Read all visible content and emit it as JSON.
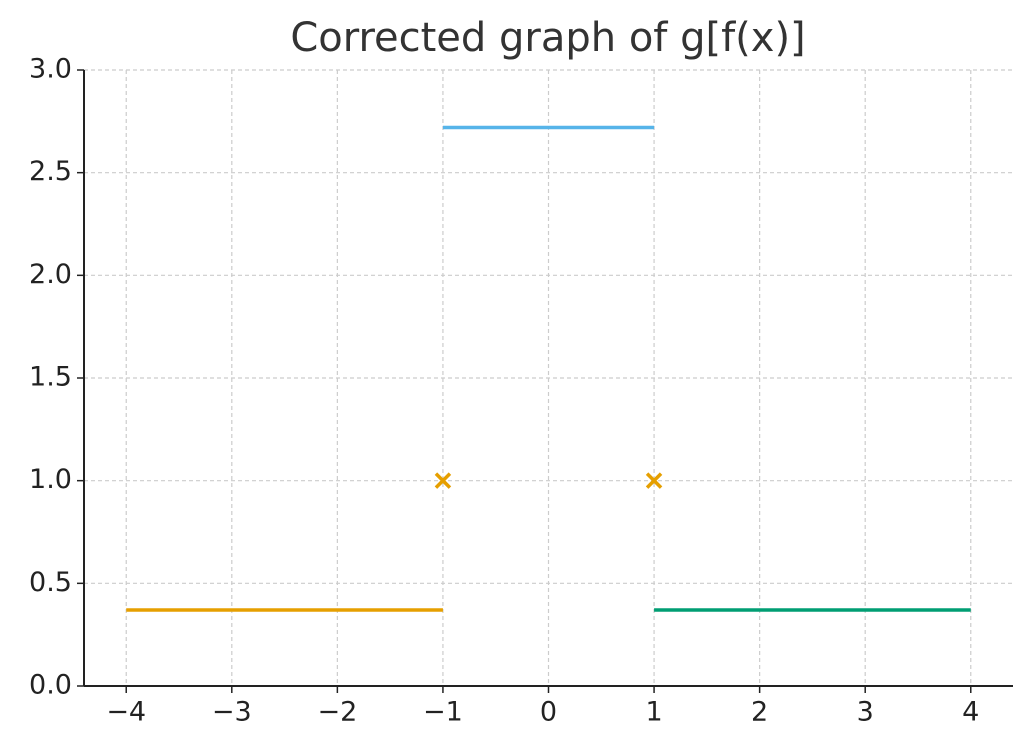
{
  "chart_data": {
    "type": "line",
    "title": "Corrected graph of g[f(x)]",
    "series": [
      {
        "color": "#E69F00",
        "x": [
          -4,
          -1
        ],
        "values": [
          0.37,
          0.37
        ]
      },
      {
        "color": "#56B4E9",
        "x": [
          -1,
          1
        ],
        "values": [
          2.72,
          2.72
        ]
      },
      {
        "color": "#009E73",
        "x": [
          1,
          4
        ],
        "values": [
          0.37,
          0.37
        ]
      },
      {
        "color": "#E69F00",
        "x": [
          -1,
          1
        ],
        "values": [
          1,
          1
        ],
        "marker": "x"
      }
    ],
    "xlim": [
      -4.4,
      4.4
    ],
    "xticks": [
      {
        "value": -4,
        "label": "−4"
      },
      {
        "value": -3,
        "label": "−3"
      },
      {
        "value": -2,
        "label": "−2"
      },
      {
        "value": -1,
        "label": "−1"
      },
      0,
      1,
      2,
      3,
      4
    ],
    "ylim": [
      0,
      3
    ],
    "yticks": [
      {
        "value": 0,
        "label": "0.0"
      },
      0.5,
      {
        "value": 1,
        "label": "1.0"
      },
      1.5,
      {
        "value": 2,
        "label": "2.0"
      },
      2.5,
      {
        "value": 3,
        "label": "3.0"
      }
    ],
    "grid": true
  }
}
